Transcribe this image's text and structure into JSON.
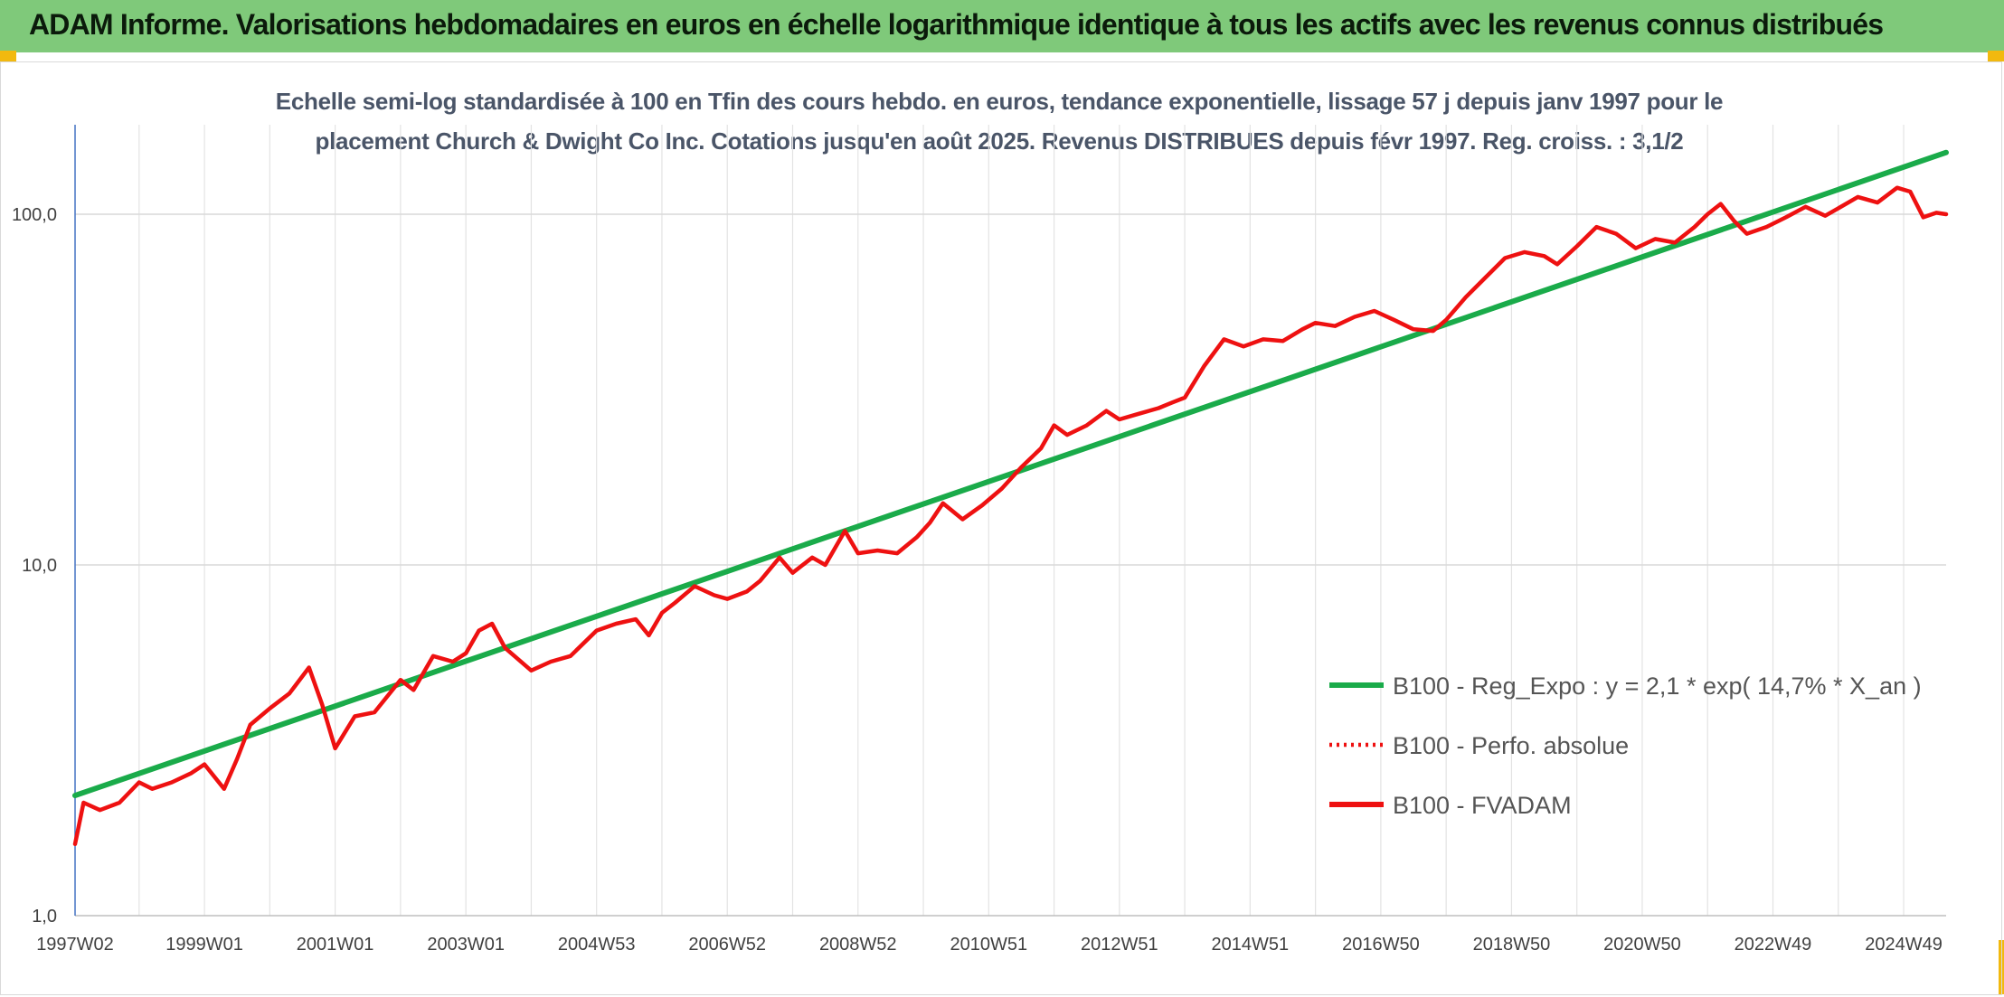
{
  "header": {
    "title": "ADAM Informe. Valorisations hebdomadaires en euros en échelle logarithmique identique à tous les actifs avec les revenus connus distribués"
  },
  "colors": {
    "banner": "#7fc97a",
    "regression": "#1aab4a",
    "series": "#ee1111",
    "accent": "#f2b90f"
  },
  "chart_data": {
    "type": "line",
    "title_lines": [
      "Echelle semi-log standardisée à 100 en Tfin des cours hebdo. en euros, tendance exponentielle, lissage 57 j depuis janv 1997 pour le",
      "placement Church & Dwight Co Inc. Cotations jusqu'en août 2025. Revenus DISTRIBUES depuis févr 1997. Reg. croiss. : 3,1/2"
    ],
    "y_scale": "log",
    "ylim": [
      1,
      180
    ],
    "xlim": [
      1997.02,
      2025.65
    ],
    "y_ticks": [
      {
        "value": 1,
        "label": "1,0"
      },
      {
        "value": 10,
        "label": "10,0"
      },
      {
        "value": 100,
        "label": "100,0"
      }
    ],
    "x_ticks": [
      {
        "year": 1997.02,
        "label": "1997W02"
      },
      {
        "year": 1999.0,
        "label": "1999W01"
      },
      {
        "year": 2001.0,
        "label": "2001W01"
      },
      {
        "year": 2003.0,
        "label": "2003W01"
      },
      {
        "year": 2005.0,
        "label": "2004W53"
      },
      {
        "year": 2007.0,
        "label": "2006W52"
      },
      {
        "year": 2009.0,
        "label": "2008W52"
      },
      {
        "year": 2011.0,
        "label": "2010W51"
      },
      {
        "year": 2013.0,
        "label": "2012W51"
      },
      {
        "year": 2015.0,
        "label": "2014W51"
      },
      {
        "year": 2017.0,
        "label": "2016W50"
      },
      {
        "year": 2019.0,
        "label": "2018W50"
      },
      {
        "year": 2021.0,
        "label": "2020W50"
      },
      {
        "year": 2023.0,
        "label": "2022W49"
      },
      {
        "year": 2025.0,
        "label": "2024W49"
      }
    ],
    "grid": true,
    "legend_position": "bottom-right",
    "series": [
      {
        "name": "B100 - Reg_Expo : y = 2,1 * exp( 14,7% *  X_an )",
        "style": "solid",
        "color": "#1aab4a",
        "points": [
          [
            1997.02,
            2.2
          ],
          [
            2025.65,
            150.0
          ]
        ]
      },
      {
        "name": "B100 - Perfo. absolue",
        "style": "dotted",
        "color": "#ee1111",
        "points": []
      },
      {
        "name": "B100 - FVADAM",
        "style": "solid",
        "color": "#ee1111",
        "points": [
          [
            1997.02,
            1.6
          ],
          [
            1997.15,
            2.1
          ],
          [
            1997.4,
            2.0
          ],
          [
            1997.7,
            2.1
          ],
          [
            1998.0,
            2.4
          ],
          [
            1998.2,
            2.3
          ],
          [
            1998.5,
            2.4
          ],
          [
            1998.8,
            2.55
          ],
          [
            1999.0,
            2.7
          ],
          [
            1999.3,
            2.3
          ],
          [
            1999.5,
            2.8
          ],
          [
            1999.7,
            3.5
          ],
          [
            2000.0,
            3.9
          ],
          [
            2000.3,
            4.3
          ],
          [
            2000.6,
            5.1
          ],
          [
            2000.8,
            4.0
          ],
          [
            2001.0,
            3.0
          ],
          [
            2001.3,
            3.7
          ],
          [
            2001.6,
            3.8
          ],
          [
            2002.0,
            4.7
          ],
          [
            2002.2,
            4.4
          ],
          [
            2002.5,
            5.5
          ],
          [
            2002.8,
            5.3
          ],
          [
            2003.0,
            5.6
          ],
          [
            2003.2,
            6.5
          ],
          [
            2003.4,
            6.8
          ],
          [
            2003.6,
            5.8
          ],
          [
            2004.0,
            5.0
          ],
          [
            2004.3,
            5.3
          ],
          [
            2004.6,
            5.5
          ],
          [
            2005.0,
            6.5
          ],
          [
            2005.3,
            6.8
          ],
          [
            2005.6,
            7.0
          ],
          [
            2005.8,
            6.3
          ],
          [
            2006.0,
            7.3
          ],
          [
            2006.2,
            7.8
          ],
          [
            2006.5,
            8.7
          ],
          [
            2006.8,
            8.2
          ],
          [
            2007.0,
            8.0
          ],
          [
            2007.3,
            8.4
          ],
          [
            2007.5,
            9.0
          ],
          [
            2007.8,
            10.5
          ],
          [
            2008.0,
            9.5
          ],
          [
            2008.3,
            10.5
          ],
          [
            2008.5,
            10.0
          ],
          [
            2008.8,
            12.5
          ],
          [
            2009.0,
            10.8
          ],
          [
            2009.3,
            11.0
          ],
          [
            2009.6,
            10.8
          ],
          [
            2009.9,
            12.0
          ],
          [
            2010.1,
            13.2
          ],
          [
            2010.3,
            15.0
          ],
          [
            2010.6,
            13.5
          ],
          [
            2010.9,
            14.8
          ],
          [
            2011.2,
            16.5
          ],
          [
            2011.5,
            19.0
          ],
          [
            2011.8,
            21.5
          ],
          [
            2012.0,
            25.0
          ],
          [
            2012.2,
            23.5
          ],
          [
            2012.5,
            25.0
          ],
          [
            2012.8,
            27.5
          ],
          [
            2013.0,
            26.0
          ],
          [
            2013.3,
            27.0
          ],
          [
            2013.6,
            28.0
          ],
          [
            2013.8,
            29.0
          ],
          [
            2014.0,
            30.0
          ],
          [
            2014.3,
            37.0
          ],
          [
            2014.6,
            44.0
          ],
          [
            2014.9,
            42.0
          ],
          [
            2015.2,
            44.0
          ],
          [
            2015.5,
            43.5
          ],
          [
            2015.8,
            47.0
          ],
          [
            2016.0,
            49.0
          ],
          [
            2016.3,
            48.0
          ],
          [
            2016.6,
            51.0
          ],
          [
            2016.9,
            53.0
          ],
          [
            2017.2,
            50.0
          ],
          [
            2017.5,
            47.0
          ],
          [
            2017.8,
            46.5
          ],
          [
            2018.0,
            50.0
          ],
          [
            2018.3,
            58.0
          ],
          [
            2018.6,
            66.0
          ],
          [
            2018.9,
            75.0
          ],
          [
            2019.2,
            78.0
          ],
          [
            2019.5,
            76.0
          ],
          [
            2019.7,
            72.0
          ],
          [
            2020.0,
            81.0
          ],
          [
            2020.3,
            92.0
          ],
          [
            2020.6,
            88.0
          ],
          [
            2020.9,
            80.0
          ],
          [
            2021.2,
            85.0
          ],
          [
            2021.5,
            83.0
          ],
          [
            2021.8,
            92.0
          ],
          [
            2022.0,
            100.0
          ],
          [
            2022.2,
            107.0
          ],
          [
            2022.4,
            96.0
          ],
          [
            2022.6,
            88.0
          ],
          [
            2022.9,
            92.0
          ],
          [
            2023.2,
            98.0
          ],
          [
            2023.5,
            105.0
          ],
          [
            2023.8,
            99.0
          ],
          [
            2024.0,
            104.0
          ],
          [
            2024.3,
            112.0
          ],
          [
            2024.6,
            108.0
          ],
          [
            2024.9,
            119.0
          ],
          [
            2025.1,
            116.0
          ],
          [
            2025.3,
            98.0
          ],
          [
            2025.5,
            101.0
          ],
          [
            2025.65,
            100.0
          ]
        ]
      }
    ]
  }
}
